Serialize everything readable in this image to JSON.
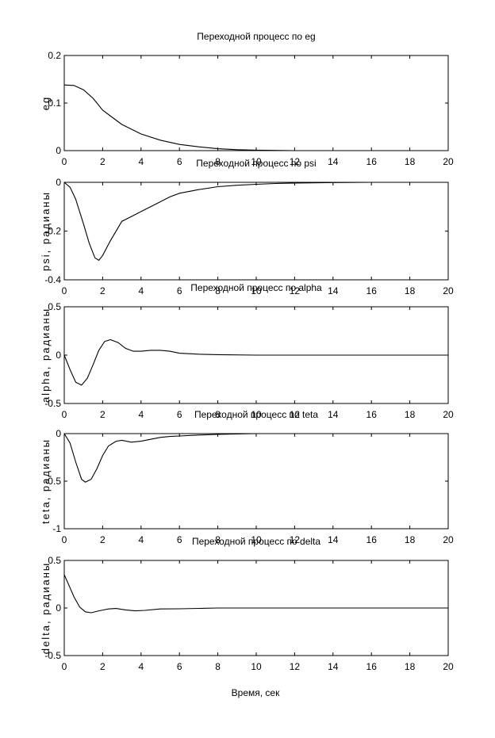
{
  "figure": {
    "xlabel": "Время, сек"
  },
  "chart_data": [
    {
      "type": "line",
      "title": "Переходной процесс по eg",
      "ylabel": "eg",
      "xlim": [
        0,
        20
      ],
      "ylim": [
        0,
        0.2
      ],
      "xticks": [
        "0",
        "2",
        "4",
        "6",
        "8",
        "10",
        "12",
        "14",
        "16",
        "18",
        "20"
      ],
      "yticks": [
        "0",
        "0.1",
        "0.2"
      ],
      "series": [
        {
          "x": [
            0,
            0.5,
            1,
            1.5,
            2,
            2.5,
            3,
            3.5,
            4,
            5,
            6,
            7,
            8,
            9,
            10,
            12,
            14,
            16,
            18,
            20
          ],
          "y": [
            0.138,
            0.137,
            0.128,
            0.11,
            0.085,
            0.07,
            0.055,
            0.045,
            0.035,
            0.022,
            0.013,
            0.008,
            0.004,
            0.002,
            0.001,
            0,
            0,
            0,
            0,
            0
          ]
        }
      ]
    },
    {
      "type": "line",
      "title": "Переходной процесс по psi",
      "ylabel": "psi, радианы",
      "xlim": [
        0,
        20
      ],
      "ylim": [
        -0.4,
        0
      ],
      "xticks": [
        "0",
        "2",
        "4",
        "6",
        "8",
        "10",
        "12",
        "14",
        "16",
        "18",
        "20"
      ],
      "yticks": [
        "0",
        "-0.2",
        "-0.4"
      ],
      "series": [
        {
          "x": [
            0,
            0.3,
            0.6,
            1,
            1.3,
            1.6,
            1.8,
            2,
            2.4,
            3,
            3.5,
            4,
            4.5,
            5,
            5.5,
            6,
            7,
            8,
            9,
            10,
            11,
            12,
            14,
            16,
            18,
            20
          ],
          "y": [
            0,
            -0.02,
            -0.07,
            -0.17,
            -0.25,
            -0.31,
            -0.32,
            -0.3,
            -0.24,
            -0.16,
            -0.14,
            -0.12,
            -0.1,
            -0.08,
            -0.06,
            -0.045,
            -0.03,
            -0.018,
            -0.012,
            -0.008,
            -0.005,
            -0.003,
            -0.001,
            0,
            0,
            0
          ]
        }
      ]
    },
    {
      "type": "line",
      "title": "Переходной процесс по alpha",
      "ylabel": "alpha, радианы",
      "xlim": [
        0,
        20
      ],
      "ylim": [
        -0.5,
        0.5
      ],
      "xticks": [
        "0",
        "2",
        "4",
        "6",
        "8",
        "10",
        "12",
        "14",
        "16",
        "18",
        "20"
      ],
      "yticks": [
        "0.5",
        "0",
        "-0.5"
      ],
      "series": [
        {
          "x": [
            0,
            0.3,
            0.6,
            0.9,
            1.2,
            1.5,
            1.8,
            2.1,
            2.4,
            2.8,
            3.2,
            3.6,
            4,
            4.5,
            5,
            5.5,
            6,
            7,
            8,
            10,
            12,
            14,
            16,
            18,
            20
          ],
          "y": [
            0,
            -0.15,
            -0.28,
            -0.31,
            -0.24,
            -0.1,
            0.05,
            0.14,
            0.16,
            0.13,
            0.07,
            0.04,
            0.04,
            0.05,
            0.05,
            0.04,
            0.02,
            0.01,
            0.005,
            0,
            0,
            0,
            0,
            0,
            0
          ]
        }
      ]
    },
    {
      "type": "line",
      "title": "Переходной процесс по teta",
      "ylabel": "teta, радианы",
      "xlim": [
        0,
        20
      ],
      "ylim": [
        -1,
        0
      ],
      "xticks": [
        "0",
        "2",
        "4",
        "6",
        "8",
        "10",
        "12",
        "14",
        "16",
        "18",
        "20"
      ],
      "yticks": [
        "0",
        "-0.5",
        "-1"
      ],
      "series": [
        {
          "x": [
            0,
            0.3,
            0.6,
            0.9,
            1.1,
            1.4,
            1.7,
            2,
            2.3,
            2.7,
            3,
            3.5,
            4,
            4.5,
            5,
            5.5,
            6,
            7,
            8,
            10,
            12,
            14,
            16,
            18,
            20
          ],
          "y": [
            0,
            -0.1,
            -0.3,
            -0.48,
            -0.51,
            -0.48,
            -0.37,
            -0.23,
            -0.13,
            -0.08,
            -0.07,
            -0.09,
            -0.08,
            -0.06,
            -0.04,
            -0.03,
            -0.025,
            -0.015,
            -0.008,
            0,
            0,
            0,
            0,
            0,
            0
          ]
        }
      ]
    },
    {
      "type": "line",
      "title": "Переходной процесс по delta",
      "ylabel": "delta, радианы",
      "xlim": [
        0,
        20
      ],
      "ylim": [
        -0.5,
        0.5
      ],
      "xticks": [
        "0",
        "2",
        "4",
        "6",
        "8",
        "10",
        "12",
        "14",
        "16",
        "18",
        "20"
      ],
      "yticks": [
        "0.5",
        "0",
        "-0.5"
      ],
      "series": [
        {
          "x": [
            0,
            0.2,
            0.5,
            0.8,
            1.1,
            1.4,
            1.8,
            2.3,
            2.7,
            3.2,
            3.7,
            4.2,
            5,
            6,
            7,
            8,
            10,
            12,
            14,
            16,
            18,
            20
          ],
          "y": [
            0.35,
            0.26,
            0.12,
            0.01,
            -0.04,
            -0.05,
            -0.03,
            -0.01,
            -0.005,
            -0.02,
            -0.03,
            -0.025,
            -0.01,
            -0.008,
            -0.004,
            0,
            0,
            0,
            0,
            0,
            0,
            0
          ]
        }
      ]
    }
  ]
}
